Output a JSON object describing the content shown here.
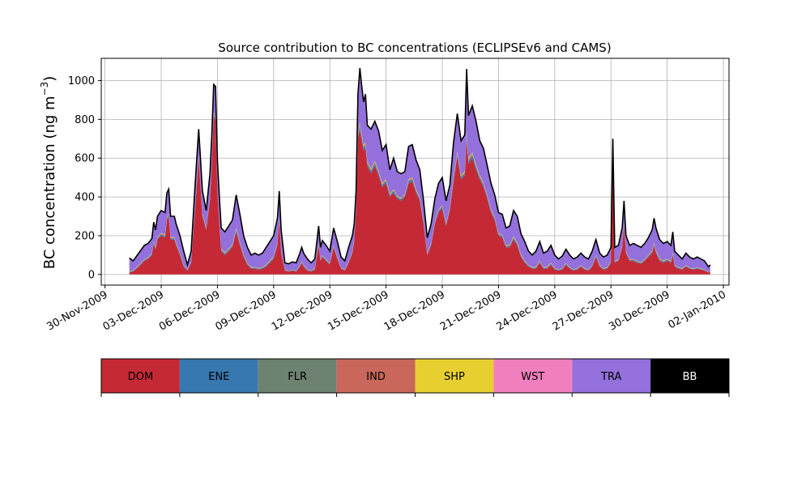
{
  "chart_data": {
    "type": "area",
    "stacked": true,
    "title": "Source contribution to BC concentrations (ECLIPSEv6 and CAMS)",
    "ylabel_main": "BC concentration (ng m",
    "ylabel_sup": "−3",
    "ylabel_close": ")",
    "ylim": [
      -55,
      1115
    ],
    "xlim_days": [
      -0.2,
      33.3
    ],
    "grid": true,
    "yticks": [
      0,
      200,
      400,
      600,
      800,
      1000
    ],
    "ytick_labels": [
      "0",
      "200",
      "400",
      "600",
      "800",
      "1000"
    ],
    "xtick_labels": [
      "30-Nov-2009",
      "03-Dec-2009",
      "06-Dec-2009",
      "09-Dec-2009",
      "12-Dec-2009",
      "15-Dec-2009",
      "18-Dec-2009",
      "21-Dec-2009",
      "24-Dec-2009",
      "27-Dec-2009",
      "30-Dec-2009",
      "02-Jan-2010"
    ],
    "xtick_days": [
      0,
      3,
      6,
      9,
      12,
      15,
      18,
      21,
      24,
      27,
      30,
      33
    ],
    "total": [
      [
        1.3,
        85
      ],
      [
        1.5,
        70
      ],
      [
        1.8,
        110
      ],
      [
        2.1,
        150
      ],
      [
        2.3,
        160
      ],
      [
        2.5,
        185
      ],
      [
        2.6,
        270
      ],
      [
        2.7,
        230
      ],
      [
        2.8,
        300
      ],
      [
        3.0,
        330
      ],
      [
        3.2,
        320
      ],
      [
        3.3,
        420
      ],
      [
        3.4,
        440
      ],
      [
        3.5,
        300
      ],
      [
        3.7,
        300
      ],
      [
        3.8,
        260
      ],
      [
        4.0,
        200
      ],
      [
        4.2,
        120
      ],
      [
        4.4,
        50
      ],
      [
        4.6,
        120
      ],
      [
        4.8,
        450
      ],
      [
        5.0,
        750
      ],
      [
        5.2,
        430
      ],
      [
        5.4,
        330
      ],
      [
        5.6,
        520
      ],
      [
        5.7,
        720
      ],
      [
        5.8,
        980
      ],
      [
        5.9,
        970
      ],
      [
        6.0,
        590
      ],
      [
        6.1,
        410
      ],
      [
        6.2,
        240
      ],
      [
        6.4,
        220
      ],
      [
        6.6,
        250
      ],
      [
        6.8,
        280
      ],
      [
        7.0,
        410
      ],
      [
        7.2,
        310
      ],
      [
        7.4,
        200
      ],
      [
        7.6,
        140
      ],
      [
        7.8,
        100
      ],
      [
        8.0,
        110
      ],
      [
        8.2,
        100
      ],
      [
        8.4,
        110
      ],
      [
        8.6,
        140
      ],
      [
        8.8,
        170
      ],
      [
        9.0,
        200
      ],
      [
        9.2,
        290
      ],
      [
        9.3,
        430
      ],
      [
        9.4,
        230
      ],
      [
        9.6,
        60
      ],
      [
        9.8,
        55
      ],
      [
        10.0,
        65
      ],
      [
        10.2,
        60
      ],
      [
        10.4,
        110
      ],
      [
        10.5,
        140
      ],
      [
        10.6,
        110
      ],
      [
        10.8,
        80
      ],
      [
        11.0,
        60
      ],
      [
        11.2,
        80
      ],
      [
        11.4,
        250
      ],
      [
        11.5,
        140
      ],
      [
        11.6,
        175
      ],
      [
        11.8,
        150
      ],
      [
        12.0,
        120
      ],
      [
        12.2,
        240
      ],
      [
        12.4,
        170
      ],
      [
        12.6,
        90
      ],
      [
        12.8,
        70
      ],
      [
        13.0,
        140
      ],
      [
        13.2,
        200
      ],
      [
        13.3,
        260
      ],
      [
        13.4,
        430
      ],
      [
        13.5,
        930
      ],
      [
        13.6,
        1065
      ],
      [
        13.7,
        970
      ],
      [
        13.8,
        890
      ],
      [
        13.9,
        930
      ],
      [
        14.0,
        770
      ],
      [
        14.2,
        750
      ],
      [
        14.4,
        790
      ],
      [
        14.6,
        740
      ],
      [
        14.8,
        640
      ],
      [
        15.0,
        670
      ],
      [
        15.2,
        540
      ],
      [
        15.4,
        600
      ],
      [
        15.6,
        530
      ],
      [
        15.8,
        520
      ],
      [
        16.0,
        530
      ],
      [
        16.2,
        660
      ],
      [
        16.4,
        670
      ],
      [
        16.6,
        590
      ],
      [
        16.8,
        540
      ],
      [
        17.0,
        380
      ],
      [
        17.2,
        190
      ],
      [
        17.4,
        260
      ],
      [
        17.6,
        390
      ],
      [
        17.8,
        470
      ],
      [
        18.0,
        500
      ],
      [
        18.2,
        380
      ],
      [
        18.4,
        460
      ],
      [
        18.6,
        680
      ],
      [
        18.8,
        830
      ],
      [
        19.0,
        690
      ],
      [
        19.2,
        720
      ],
      [
        19.3,
        1060
      ],
      [
        19.4,
        820
      ],
      [
        19.6,
        870
      ],
      [
        19.8,
        790
      ],
      [
        20.0,
        690
      ],
      [
        20.2,
        650
      ],
      [
        20.4,
        560
      ],
      [
        20.6,
        470
      ],
      [
        20.8,
        410
      ],
      [
        21.0,
        320
      ],
      [
        21.2,
        310
      ],
      [
        21.4,
        240
      ],
      [
        21.6,
        250
      ],
      [
        21.8,
        330
      ],
      [
        22.0,
        300
      ],
      [
        22.2,
        210
      ],
      [
        22.4,
        170
      ],
      [
        22.6,
        120
      ],
      [
        22.8,
        100
      ],
      [
        23.0,
        120
      ],
      [
        23.2,
        170
      ],
      [
        23.4,
        110
      ],
      [
        23.6,
        120
      ],
      [
        23.8,
        150
      ],
      [
        24.0,
        100
      ],
      [
        24.2,
        80
      ],
      [
        24.4,
        95
      ],
      [
        24.6,
        130
      ],
      [
        24.8,
        100
      ],
      [
        25.0,
        80
      ],
      [
        25.2,
        90
      ],
      [
        25.4,
        110
      ],
      [
        25.6,
        90
      ],
      [
        25.8,
        80
      ],
      [
        26.0,
        120
      ],
      [
        26.2,
        180
      ],
      [
        26.4,
        110
      ],
      [
        26.6,
        90
      ],
      [
        26.8,
        100
      ],
      [
        27.0,
        140
      ],
      [
        27.1,
        700
      ],
      [
        27.2,
        140
      ],
      [
        27.4,
        150
      ],
      [
        27.6,
        240
      ],
      [
        27.7,
        380
      ],
      [
        27.8,
        200
      ],
      [
        28.0,
        150
      ],
      [
        28.2,
        160
      ],
      [
        28.4,
        150
      ],
      [
        28.6,
        140
      ],
      [
        28.8,
        160
      ],
      [
        29.0,
        190
      ],
      [
        29.2,
        230
      ],
      [
        29.3,
        290
      ],
      [
        29.4,
        240
      ],
      [
        29.6,
        180
      ],
      [
        29.8,
        160
      ],
      [
        30.0,
        170
      ],
      [
        30.2,
        150
      ],
      [
        30.3,
        220
      ],
      [
        30.4,
        120
      ],
      [
        30.6,
        100
      ],
      [
        30.8,
        80
      ],
      [
        31.0,
        110
      ],
      [
        31.2,
        90
      ],
      [
        31.4,
        80
      ],
      [
        31.6,
        90
      ],
      [
        31.8,
        80
      ],
      [
        32.0,
        70
      ],
      [
        32.2,
        40
      ],
      [
        32.3,
        50
      ]
    ],
    "dom": [
      [
        1.3,
        10
      ],
      [
        1.5,
        15
      ],
      [
        1.8,
        40
      ],
      [
        2.1,
        70
      ],
      [
        2.3,
        80
      ],
      [
        2.5,
        100
      ],
      [
        2.6,
        160
      ],
      [
        2.7,
        130
      ],
      [
        2.8,
        180
      ],
      [
        3.0,
        200
      ],
      [
        3.2,
        190
      ],
      [
        3.3,
        280
      ],
      [
        3.4,
        300
      ],
      [
        3.5,
        180
      ],
      [
        3.7,
        180
      ],
      [
        3.8,
        150
      ],
      [
        4.0,
        100
      ],
      [
        4.2,
        40
      ],
      [
        4.4,
        20
      ],
      [
        4.6,
        60
      ],
      [
        4.8,
        330
      ],
      [
        5.0,
        600
      ],
      [
        5.2,
        300
      ],
      [
        5.4,
        230
      ],
      [
        5.6,
        380
      ],
      [
        5.7,
        560
      ],
      [
        5.8,
        820
      ],
      [
        5.9,
        790
      ],
      [
        6.0,
        430
      ],
      [
        6.1,
        270
      ],
      [
        6.2,
        120
      ],
      [
        6.4,
        100
      ],
      [
        6.6,
        120
      ],
      [
        6.8,
        140
      ],
      [
        7.0,
        220
      ],
      [
        7.2,
        150
      ],
      [
        7.4,
        90
      ],
      [
        7.6,
        50
      ],
      [
        7.8,
        30
      ],
      [
        8.0,
        30
      ],
      [
        8.2,
        25
      ],
      [
        8.4,
        30
      ],
      [
        8.6,
        40
      ],
      [
        8.8,
        60
      ],
      [
        9.0,
        80
      ],
      [
        9.2,
        150
      ],
      [
        9.3,
        280
      ],
      [
        9.4,
        110
      ],
      [
        9.6,
        20
      ],
      [
        9.8,
        15
      ],
      [
        10.0,
        20
      ],
      [
        10.2,
        15
      ],
      [
        10.4,
        40
      ],
      [
        10.5,
        60
      ],
      [
        10.6,
        40
      ],
      [
        10.8,
        20
      ],
      [
        11.0,
        15
      ],
      [
        11.2,
        25
      ],
      [
        11.4,
        150
      ],
      [
        11.5,
        70
      ],
      [
        11.6,
        90
      ],
      [
        11.8,
        70
      ],
      [
        12.0,
        50
      ],
      [
        12.2,
        140
      ],
      [
        12.4,
        80
      ],
      [
        12.6,
        30
      ],
      [
        12.8,
        20
      ],
      [
        13.0,
        60
      ],
      [
        13.2,
        110
      ],
      [
        13.3,
        170
      ],
      [
        13.4,
        330
      ],
      [
        13.5,
        700
      ],
      [
        13.6,
        750
      ],
      [
        13.7,
        690
      ],
      [
        13.8,
        640
      ],
      [
        13.9,
        650
      ],
      [
        14.0,
        560
      ],
      [
        14.2,
        520
      ],
      [
        14.4,
        560
      ],
      [
        14.6,
        510
      ],
      [
        14.8,
        450
      ],
      [
        15.0,
        470
      ],
      [
        15.2,
        400
      ],
      [
        15.4,
        420
      ],
      [
        15.6,
        390
      ],
      [
        15.8,
        380
      ],
      [
        16.0,
        400
      ],
      [
        16.2,
        470
      ],
      [
        16.4,
        480
      ],
      [
        16.6,
        420
      ],
      [
        16.8,
        380
      ],
      [
        17.0,
        260
      ],
      [
        17.2,
        100
      ],
      [
        17.4,
        150
      ],
      [
        17.6,
        260
      ],
      [
        17.8,
        320
      ],
      [
        18.0,
        340
      ],
      [
        18.2,
        250
      ],
      [
        18.4,
        330
      ],
      [
        18.6,
        480
      ],
      [
        18.8,
        610
      ],
      [
        19.0,
        490
      ],
      [
        19.2,
        510
      ],
      [
        19.3,
        700
      ],
      [
        19.4,
        570
      ],
      [
        19.6,
        600
      ],
      [
        19.8,
        540
      ],
      [
        20.0,
        490
      ],
      [
        20.2,
        450
      ],
      [
        20.4,
        390
      ],
      [
        20.6,
        320
      ],
      [
        20.8,
        280
      ],
      [
        21.0,
        200
      ],
      [
        21.2,
        190
      ],
      [
        21.4,
        140
      ],
      [
        21.6,
        140
      ],
      [
        21.8,
        180
      ],
      [
        22.0,
        150
      ],
      [
        22.2,
        90
      ],
      [
        22.4,
        60
      ],
      [
        22.6,
        40
      ],
      [
        22.8,
        30
      ],
      [
        23.0,
        30
      ],
      [
        23.2,
        60
      ],
      [
        23.4,
        30
      ],
      [
        23.6,
        30
      ],
      [
        23.8,
        50
      ],
      [
        24.0,
        25
      ],
      [
        24.2,
        20
      ],
      [
        24.4,
        25
      ],
      [
        24.6,
        50
      ],
      [
        24.8,
        30
      ],
      [
        25.0,
        20
      ],
      [
        25.2,
        25
      ],
      [
        25.4,
        40
      ],
      [
        25.6,
        25
      ],
      [
        25.8,
        20
      ],
      [
        26.0,
        40
      ],
      [
        26.2,
        90
      ],
      [
        26.4,
        40
      ],
      [
        26.6,
        25
      ],
      [
        26.8,
        30
      ],
      [
        27.0,
        60
      ],
      [
        27.1,
        540
      ],
      [
        27.2,
        60
      ],
      [
        27.4,
        70
      ],
      [
        27.6,
        140
      ],
      [
        27.7,
        250
      ],
      [
        27.8,
        110
      ],
      [
        28.0,
        70
      ],
      [
        28.2,
        70
      ],
      [
        28.4,
        60
      ],
      [
        28.6,
        55
      ],
      [
        28.8,
        70
      ],
      [
        29.0,
        90
      ],
      [
        29.2,
        110
      ],
      [
        29.3,
        150
      ],
      [
        29.4,
        110
      ],
      [
        29.6,
        70
      ],
      [
        29.8,
        60
      ],
      [
        30.0,
        70
      ],
      [
        30.2,
        60
      ],
      [
        30.3,
        100
      ],
      [
        30.4,
        40
      ],
      [
        30.6,
        30
      ],
      [
        30.8,
        25
      ],
      [
        31.0,
        40
      ],
      [
        31.2,
        30
      ],
      [
        31.4,
        25
      ],
      [
        31.6,
        30
      ],
      [
        31.8,
        25
      ],
      [
        32.0,
        20
      ],
      [
        32.2,
        10
      ],
      [
        32.3,
        12
      ]
    ],
    "series": [
      {
        "name": "DOM",
        "color": "#c62936"
      },
      {
        "name": "ENE",
        "color": "#3778b0"
      },
      {
        "name": "FLR",
        "color": "#6d8270"
      },
      {
        "name": "IND",
        "color": "#c8675a"
      },
      {
        "name": "SHP",
        "color": "#e7cf2f"
      },
      {
        "name": "WST",
        "color": "#f17fbe"
      },
      {
        "name": "TRA",
        "color": "#9370db"
      },
      {
        "name": "BB",
        "color": "#000000"
      }
    ],
    "legend_text_colors": [
      "#000000",
      "#000000",
      "#000000",
      "#000000",
      "#000000",
      "#000000",
      "#000000",
      "#ffffff"
    ],
    "minor_band_fractions": [
      0.05,
      0.02,
      0.02,
      0.02
    ]
  }
}
